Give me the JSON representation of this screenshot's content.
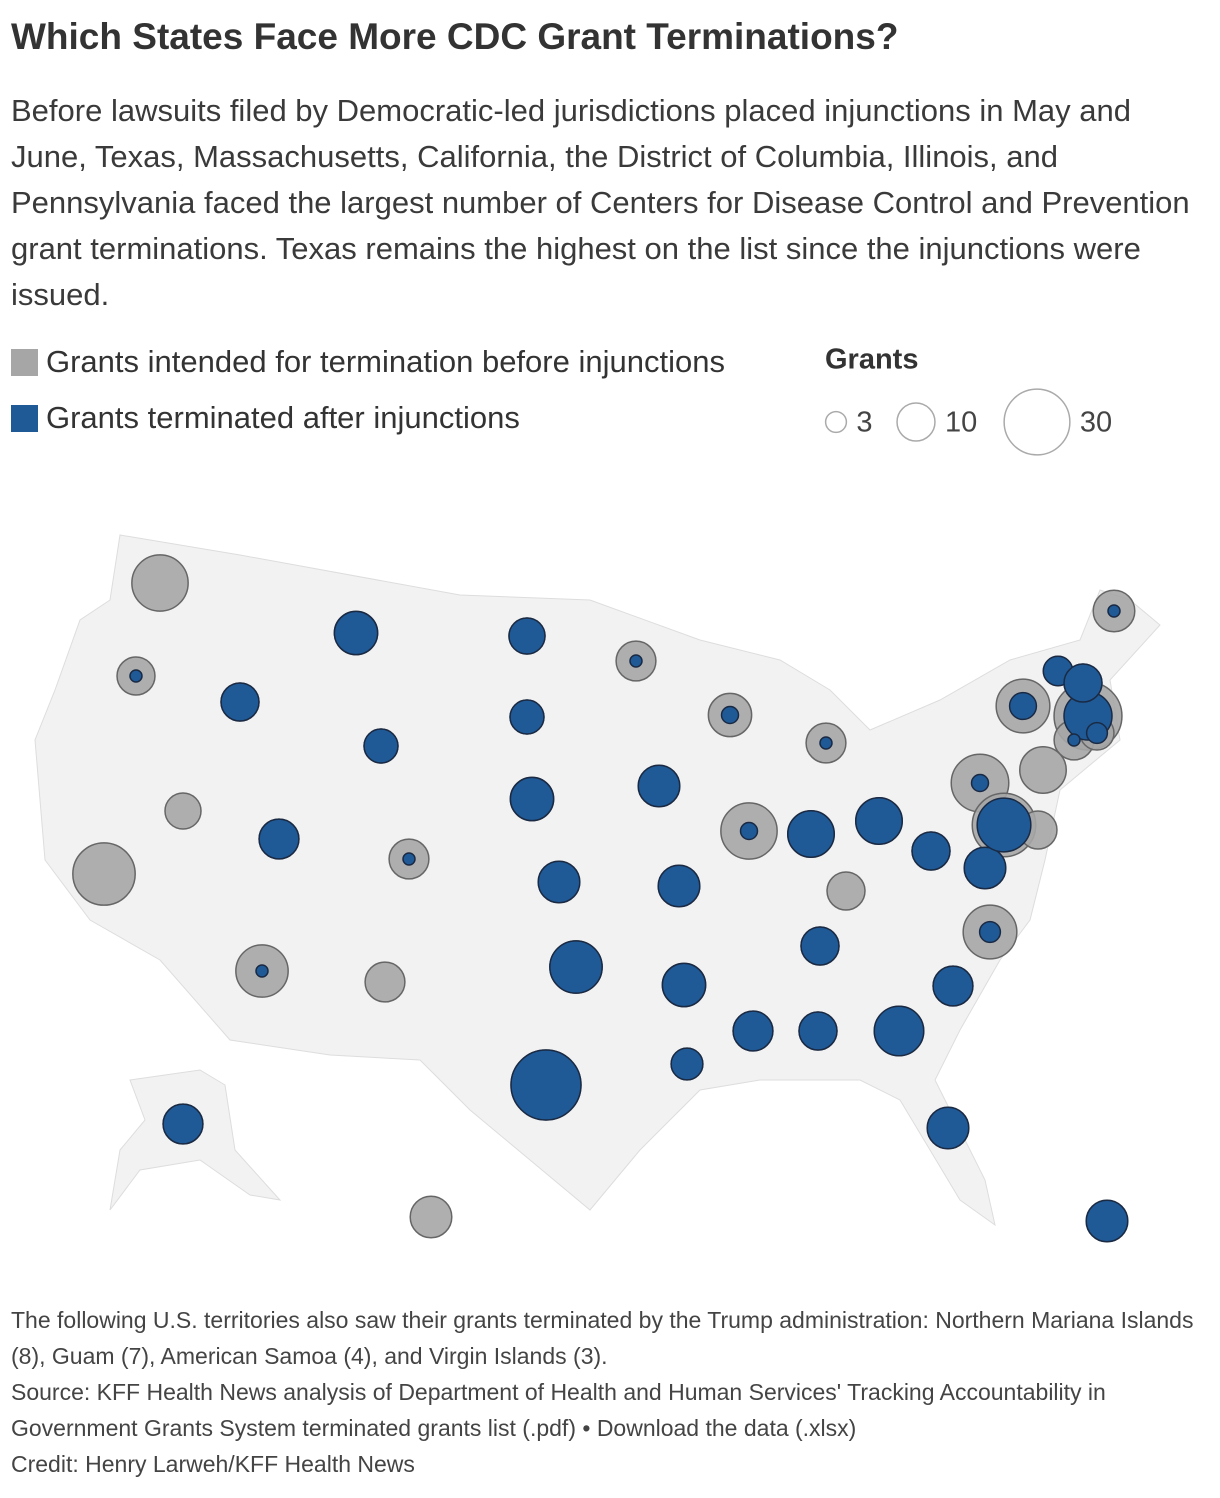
{
  "chart_data": {
    "type": "proportional-symbol-map",
    "title": "Which States Face More CDC Grant Terminations?",
    "subtitle": "Before lawsuits filed by Democratic-led jurisdictions placed injunctions in May and June, Texas, Massachusetts, California, the District of Columbia, Illinois, and Pennsylvania faced the largest number of Centers for Disease Control and Prevention grant terminations. Texas remains the highest on the list since the injunctions were issued.",
    "series": [
      {
        "name": "Grants intended for termination before injunctions",
        "color": "#a6a6a6",
        "values": [
          22,
          10,
          13,
          10,
          8,
          9,
          8,
          11,
          13,
          11,
          9,
          27,
          11,
          11,
          13,
          12,
          22,
          15,
          15,
          12,
          12,
          10,
          10,
          12,
          23,
          20,
          32,
          6,
          10,
          12,
          11,
          8,
          15,
          28,
          10,
          20,
          10,
          11,
          17,
          10,
          11,
          13,
          7,
          19,
          34,
          11,
          19,
          12,
          11,
          12,
          12
        ]
      },
      {
        "name": "Grants terminated after injunctions",
        "color": "#1f5a96",
        "values": [
          null,
          1,
          13,
          10,
          8,
          9,
          8,
          1,
          2,
          1,
          null,
          null,
          11,
          1,
          13,
          12,
          2,
          15,
          15,
          12,
          12,
          null,
          10,
          12,
          2,
          5,
          16,
          6,
          10,
          1,
          1,
          3,
          null,
          20,
          null,
          3,
          10,
          11,
          17,
          10,
          11,
          13,
          7,
          19,
          34,
          null,
          1,
          12,
          11,
          null,
          12
        ]
      }
    ],
    "size_legend": {
      "title": "Grants",
      "values": [
        3,
        10,
        30
      ]
    },
    "note": "The following U.S. territories also saw their grants terminated by the Trump administration: Northern Mariana Islands (8), Guam (7), American Samoa (4), and Virgin Islands (3).",
    "source": "Source: KFF Health News analysis of Department of Health and Human Services' Tracking Accountability in Government Grants System terminated grants list (.pdf) • Download the data (.xlsx)",
    "credit": "Credit: Henry Larweh/KFF Health News"
  }
}
